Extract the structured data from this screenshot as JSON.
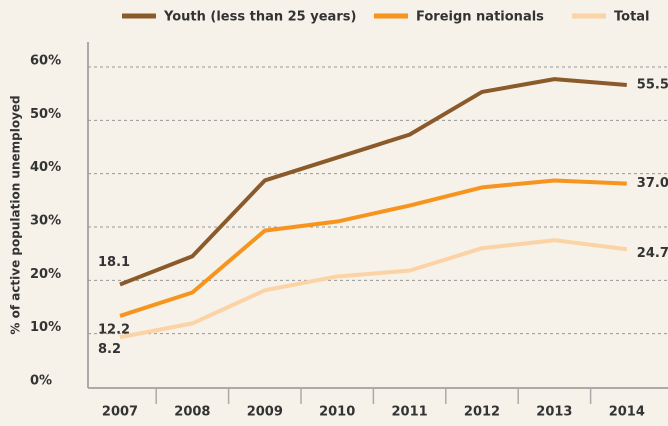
{
  "chart_data": {
    "type": "line",
    "y_label": "% of active population unemployed",
    "categories": [
      "2007",
      "2008",
      "2009",
      "2010",
      "2011",
      "2012",
      "2013",
      "2014"
    ],
    "series": [
      {
        "name": "Youth (less than 25 years)",
        "color": "#8b5a2b",
        "values": [
          18.1,
          23.4,
          37.6,
          41.9,
          46.2,
          54.2,
          56.6,
          55.5
        ],
        "value_labels": [
          "18.1",
          null,
          null,
          null,
          null,
          null,
          null,
          "55.5"
        ]
      },
      {
        "name": "Foreign nationals",
        "color": "#f7941d",
        "values": [
          12.2,
          16.6,
          28.2,
          29.9,
          32.9,
          36.3,
          37.6,
          37.0
        ],
        "value_labels": [
          "12.2",
          null,
          null,
          null,
          null,
          null,
          null,
          "37.0"
        ]
      },
      {
        "name": "Total",
        "color": "#fbd3a5",
        "values": [
          8.2,
          10.8,
          17.0,
          19.6,
          20.7,
          24.9,
          26.4,
          24.7
        ],
        "value_labels": [
          "8.2",
          null,
          null,
          null,
          null,
          null,
          null,
          "24.7"
        ]
      }
    ],
    "ylim": [
      0,
      60
    ],
    "yticks": [
      {
        "value": 0,
        "label": "0%"
      },
      {
        "value": 10,
        "label": "10%"
      },
      {
        "value": 20,
        "label": "20%"
      },
      {
        "value": 30,
        "label": "30%"
      },
      {
        "value": 40,
        "label": "40%"
      },
      {
        "value": 50,
        "label": "50%"
      },
      {
        "value": 60,
        "label": "60%"
      }
    ],
    "grid": true,
    "legend": "top"
  }
}
